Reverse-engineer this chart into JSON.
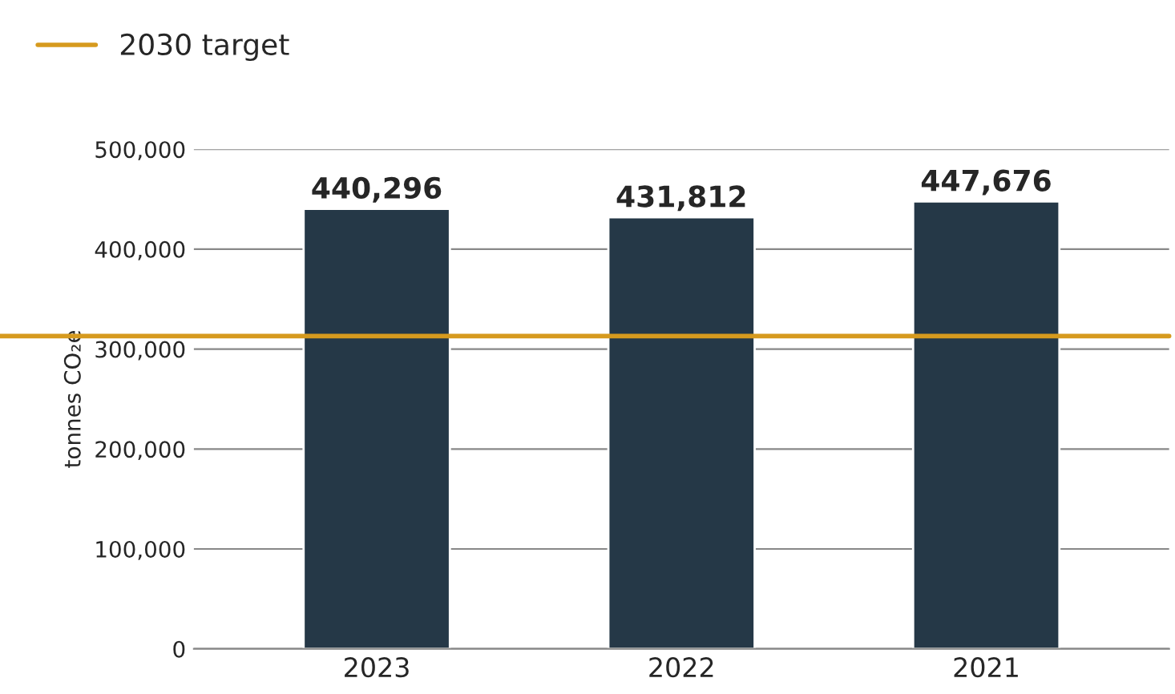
{
  "chart_data": {
    "type": "bar",
    "categories": [
      "2023",
      "2022",
      "2021"
    ],
    "values": [
      440296,
      431812,
      447676
    ],
    "color": "#253847",
    "value_labels": [
      "440,296",
      "431,812",
      "447,676"
    ],
    "ylabel": "tonnes CO₂e",
    "ylim": [
      0,
      500000
    ],
    "yticks": [
      {
        "value": 0,
        "label": "0"
      },
      {
        "value": 100000,
        "label": "100,000"
      },
      {
        "value": 200000,
        "label": "200,000"
      },
      {
        "value": 300000,
        "label": "300,000"
      },
      {
        "value": 400000,
        "label": "400,000"
      },
      {
        "value": 500000,
        "label": "500,000"
      }
    ],
    "grid": "y",
    "legend": "top left",
    "ref_lines": [
      {
        "axis": "y",
        "value": 313000,
        "label": "2030 target",
        "color": "#d69a1e",
        "line_style": "solid"
      }
    ]
  }
}
